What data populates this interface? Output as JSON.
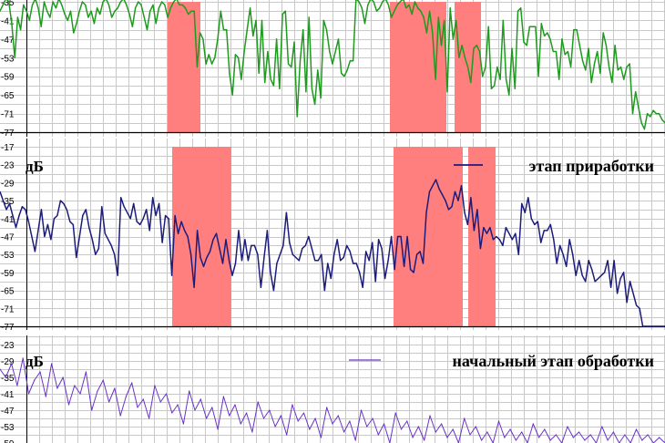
{
  "colors": {
    "grid": "#c8c8c8",
    "axis": "#000000",
    "band": "#ff7f7f",
    "panel_top": "#1e9a1e",
    "panel_mid": "#1c1c7c",
    "panel_bottom": "#6a32c8"
  },
  "chart_data": [
    {
      "type": "line",
      "ylabel": "",
      "ylim": [
        -77,
        -35
      ],
      "y_ticks": [
        "-35",
        "-41",
        "-47",
        "-53",
        "-59",
        "-65",
        "-71",
        "-77"
      ],
      "x_range": [
        0,
        730
      ],
      "grid": true,
      "legend": "",
      "highlight_bands": [
        [
          184,
          220
        ],
        [
          428,
          490
        ],
        [
          499,
          528
        ]
      ],
      "series": [
        {
          "values": [
            -38,
            -36,
            -34,
            -35,
            -42,
            -53,
            -40,
            -44,
            -36,
            -38,
            -41,
            -36,
            -34,
            -37,
            -43,
            -35,
            -38,
            -40,
            -35,
            -37,
            -34,
            -36,
            -39,
            -41,
            -38,
            -45,
            -42,
            -38,
            -35,
            -36,
            -40,
            -38,
            -42,
            -37,
            -39,
            -35,
            -34,
            -36,
            -40,
            -38,
            -37,
            -35,
            -34,
            -36,
            -39,
            -43,
            -37,
            -35,
            -36,
            -40,
            -44,
            -38,
            -36,
            -42,
            -37,
            -35,
            -36,
            -40,
            -37,
            -35,
            -34,
            -36,
            -36,
            -37,
            -39,
            -38,
            -38,
            -56,
            -45,
            -47,
            -55,
            -52,
            -55,
            -53,
            -47,
            -38,
            -44,
            -44,
            -58,
            -65,
            -52,
            -53,
            -60,
            -51,
            -44,
            -37,
            -46,
            -41,
            -58,
            -41,
            -61,
            -51,
            -60,
            -62,
            -47,
            -63,
            -39,
            -38,
            -55,
            -56,
            -48,
            -72,
            -54,
            -44,
            -64,
            -40,
            -63,
            -68,
            -57,
            -66,
            -41,
            -44,
            -51,
            -55,
            -51,
            -47,
            -58,
            -59,
            -57,
            -54,
            -54,
            -34,
            -35,
            -37,
            -42,
            -36,
            -34,
            -35,
            -38,
            -37,
            -35,
            -34,
            -36,
            -40,
            -38,
            -36,
            -35,
            -34,
            -37,
            -36,
            -39,
            -35,
            -37,
            -38,
            -40,
            -45,
            -38,
            -45,
            -60,
            -40,
            -49,
            -41,
            -64,
            -37,
            -47,
            -41,
            -53,
            -49,
            -53,
            -56,
            -61,
            -50,
            -49,
            -51,
            -59,
            -56,
            -43,
            -63,
            -62,
            -56,
            -60,
            -41,
            -60,
            -65,
            -50,
            -63,
            -38,
            -37,
            -48,
            -49,
            -43,
            -43,
            -43,
            -59,
            -42,
            -46,
            -45,
            -47,
            -51,
            -51,
            -60,
            -47,
            -52,
            -51,
            -56,
            -44,
            -44,
            -49,
            -54,
            -57,
            -50,
            -61,
            -55,
            -51,
            -58,
            -45,
            -49,
            -56,
            -61,
            -49,
            -57,
            -56,
            -60,
            -56,
            -55,
            -71,
            -64,
            -69,
            -74,
            -76,
            -71,
            -72,
            -70,
            -71,
            -71,
            -73,
            -74
          ]
        }
      ]
    },
    {
      "type": "line",
      "ylabel": "дБ",
      "ylim": [
        -77,
        -17
      ],
      "y_ticks": [
        "-17",
        "-23",
        "-29",
        "-35",
        "-41",
        "-47",
        "-53",
        "-59",
        "-65",
        "-71",
        "-77"
      ],
      "x_range": [
        0,
        730
      ],
      "grid": true,
      "legend": "top-right",
      "highlight_bands": [
        [
          189,
          254
        ],
        [
          432,
          508
        ],
        [
          514,
          544
        ]
      ],
      "series": [
        {
          "name": "этап приработки",
          "values": [
            -32,
            -35,
            -38,
            -36,
            -40,
            -44,
            -40,
            -37,
            -38,
            -42,
            -47,
            -52,
            -45,
            -38,
            -47,
            -43,
            -48,
            -41,
            -40,
            -35,
            -36,
            -38,
            -42,
            -43,
            -54,
            -47,
            -40,
            -38,
            -44,
            -48,
            -53,
            -51,
            -37,
            -46,
            -48,
            -50,
            -53,
            -60,
            -34,
            -37,
            -39,
            -41,
            -36,
            -42,
            -43,
            -41,
            -38,
            -45,
            -34,
            -40,
            -36,
            -49,
            -40,
            -41,
            -60,
            -40,
            -46,
            -42,
            -45,
            -47,
            -53,
            -64,
            -45,
            -54,
            -57,
            -54,
            -52,
            -48,
            -46,
            -51,
            -56,
            -48,
            -55,
            -60,
            -56,
            -45,
            -55,
            -48,
            -55,
            -50,
            -50,
            -53,
            -64,
            -54,
            -45,
            -59,
            -65,
            -56,
            -53,
            -50,
            -39,
            -49,
            -53,
            -54,
            -55,
            -51,
            -50,
            -47,
            -51,
            -55,
            -55,
            -53,
            -65,
            -56,
            -61,
            -53,
            -48,
            -55,
            -54,
            -50,
            -52,
            -56,
            -56,
            -59,
            -64,
            -52,
            -55,
            -49,
            -62,
            -48,
            -51,
            -61,
            -55,
            -47,
            -58,
            -47,
            -47,
            -57,
            -47,
            -58,
            -59,
            -53,
            -52,
            -56,
            -39,
            -32,
            -30,
            -28,
            -31,
            -33,
            -35,
            -38,
            -37,
            -32,
            -35,
            -30,
            -39,
            -43,
            -34,
            -45,
            -38,
            -51,
            -44,
            -46,
            -44,
            -48,
            -47,
            -48,
            -50,
            -44,
            -46,
            -48,
            -46,
            -53,
            -36,
            -39,
            -34,
            -41,
            -43,
            -42,
            -49,
            -45,
            -45,
            -43,
            -48,
            -56,
            -50,
            -53,
            -57,
            -48,
            -53,
            -60,
            -55,
            -60,
            -62,
            -55,
            -58,
            -62,
            -61,
            -60,
            -59,
            -55,
            -64,
            -55,
            -66,
            -61,
            -59,
            -69,
            -62,
            -66,
            -70,
            -71,
            -77,
            -77,
            -77,
            -77,
            -77,
            -77,
            -77,
            -77
          ]
        }
      ]
    },
    {
      "type": "line",
      "ylabel": "дБ",
      "ylim": [
        -59,
        -23
      ],
      "y_ticks": [
        "-23",
        "-29",
        "-35",
        "-41",
        "-47",
        "-53",
        "-59"
      ],
      "x_range": [
        0,
        730
      ],
      "grid": true,
      "legend": "top-right",
      "highlight_bands": [],
      "series": [
        {
          "name": "начальный этап обработки",
          "values": [
            -32,
            -35,
            -30,
            -38,
            -28,
            -41,
            -36,
            -33,
            -42,
            -30,
            -39,
            -35,
            -45,
            -38,
            -41,
            -33,
            -47,
            -40,
            -36,
            -44,
            -39,
            -49,
            -42,
            -37,
            -46,
            -43,
            -50,
            -38,
            -44,
            -41,
            -48,
            -45,
            -52,
            -40,
            -47,
            -43,
            -50,
            -46,
            -54,
            -42,
            -49,
            -45,
            -52,
            -48,
            -55,
            -44,
            -50,
            -47,
            -53,
            -49,
            -56,
            -45,
            -51,
            -48,
            -54,
            -50,
            -57,
            -46,
            -52,
            -49,
            -55,
            -51,
            -58,
            -47,
            -53,
            -50,
            -56,
            -52,
            -59,
            -48,
            -54,
            -51,
            -57,
            -53,
            -58,
            -49,
            -55,
            -52,
            -57,
            -54,
            -59,
            -50,
            -56,
            -53,
            -58,
            -55,
            -59,
            -51,
            -57,
            -54,
            -58,
            -55,
            -59,
            -52,
            -57,
            -54,
            -58,
            -56,
            -59,
            -53,
            -57,
            -55,
            -58,
            -56,
            -59,
            -53,
            -58,
            -55,
            -59,
            -56,
            -59,
            -54,
            -58,
            -56,
            -59,
            -57,
            -59
          ]
        }
      ]
    }
  ]
}
